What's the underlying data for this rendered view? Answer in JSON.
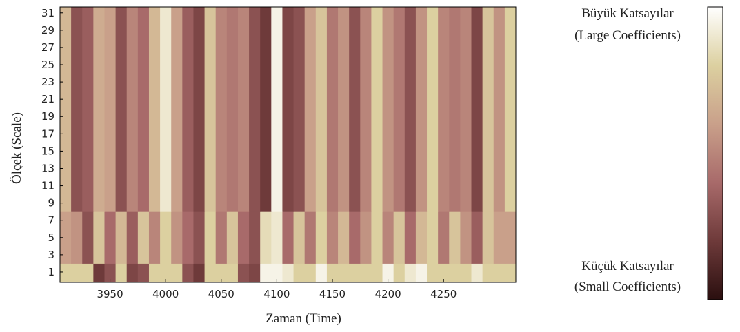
{
  "chart_data": {
    "type": "heatmap",
    "xlabel": "Zaman (Time)",
    "ylabel": "Ölçek (Scale)",
    "xlim": [
      3905,
      4315
    ],
    "ylim": [
      -0.2,
      31.7
    ],
    "xticks": [
      3950,
      4000,
      4050,
      4100,
      4150,
      4200,
      4250
    ],
    "yticks": [
      1,
      3,
      5,
      7,
      9,
      11,
      13,
      15,
      17,
      19,
      21,
      23,
      25,
      27,
      29,
      31
    ],
    "xbins": [
      3905,
      3915,
      3925,
      3935,
      3945,
      3955,
      3965,
      3975,
      3985,
      3995,
      4005,
      4015,
      4025,
      4035,
      4045,
      4055,
      4065,
      4075,
      4085,
      4095,
      4105,
      4115,
      4125,
      4135,
      4145,
      4155,
      4165,
      4175,
      4185,
      4195,
      4205,
      4215,
      4225,
      4235,
      4245,
      4255,
      4265,
      4275,
      4285,
      4295,
      4305,
      4315
    ],
    "ybins": [
      -0.2,
      2,
      8,
      31.7
    ],
    "z": [
      [
        0.8,
        0.8,
        0.8,
        0.2,
        0.3,
        0.8,
        0.25,
        0.3,
        0.8,
        0.8,
        0.8,
        0.3,
        0.2,
        0.8,
        0.8,
        0.8,
        0.3,
        0.25,
        0.95,
        0.95,
        0.9,
        0.8,
        0.8,
        0.95,
        0.8,
        0.8,
        0.8,
        0.8,
        0.8,
        0.95,
        0.8,
        0.9,
        0.95,
        0.8,
        0.8,
        0.8,
        0.8,
        0.9,
        0.8,
        0.8,
        0.8
      ],
      [
        0.6,
        0.55,
        0.3,
        0.75,
        0.4,
        0.7,
        0.35,
        0.75,
        0.5,
        0.8,
        0.55,
        0.4,
        0.3,
        0.8,
        0.45,
        0.75,
        0.4,
        0.3,
        0.85,
        0.9,
        0.4,
        0.75,
        0.45,
        0.8,
        0.5,
        0.7,
        0.4,
        0.55,
        0.8,
        0.5,
        0.75,
        0.4,
        0.7,
        0.8,
        0.45,
        0.75,
        0.55,
        0.35,
        0.75,
        0.6,
        0.6
      ],
      [
        0.7,
        0.3,
        0.35,
        0.65,
        0.6,
        0.3,
        0.5,
        0.4,
        0.7,
        0.9,
        0.6,
        0.35,
        0.25,
        0.75,
        0.5,
        0.45,
        0.5,
        0.3,
        0.2,
        0.95,
        0.25,
        0.3,
        0.6,
        0.75,
        0.45,
        0.55,
        0.3,
        0.5,
        0.8,
        0.55,
        0.45,
        0.3,
        0.55,
        0.8,
        0.5,
        0.45,
        0.5,
        0.25,
        0.75,
        0.55,
        0.8
      ]
    ],
    "zlim": [
      0,
      1
    ],
    "colormap": [
      "#2a0f0f",
      "#6e3a3a",
      "#a86a6a",
      "#c9a08a",
      "#dcd0a0",
      "#ffffff"
    ],
    "colorbar_labels": {
      "top": [
        "Büyük Katsayılar",
        "(Large Coefficients)"
      ],
      "bottom": [
        "Küçük Katsayılar",
        "(Small Coefficients)"
      ]
    }
  }
}
